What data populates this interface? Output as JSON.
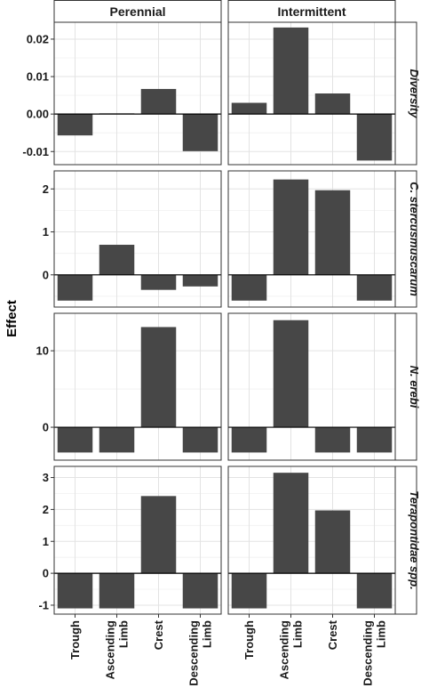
{
  "chart_data": {
    "type": "bar",
    "ylabel": "Effect",
    "categories": [
      "Trough",
      "Ascending Limb",
      "Crest",
      "Descending Limb"
    ],
    "category_lines": [
      [
        "Trough"
      ],
      [
        "Ascending",
        "Limb"
      ],
      [
        "Crest"
      ],
      [
        "Descending",
        "Limb"
      ]
    ],
    "columns": [
      "Perennial",
      "Intermittent"
    ],
    "rows": [
      {
        "name": "Diversity",
        "yticks": [
          -0.01,
          0.0,
          0.01,
          0.02
        ],
        "ytick_labels": [
          "-0.01",
          "0.00",
          "0.01",
          "0.02"
        ],
        "ylim": [
          -0.0135,
          0.0245
        ],
        "series": [
          {
            "name": "Perennial",
            "values": [
              -0.0057,
              0.0002,
              0.0067,
              -0.0099
            ]
          },
          {
            "name": "Intermittent",
            "values": [
              0.003,
              0.0231,
              0.0055,
              -0.0124
            ]
          }
        ]
      },
      {
        "name": "C. stercusmuscarum",
        "yticks": [
          0,
          1,
          2
        ],
        "ytick_labels": [
          "0",
          "1",
          "2"
        ],
        "ylim": [
          -0.75,
          2.42
        ],
        "series": [
          {
            "name": "Perennial",
            "values": [
              -0.6,
              0.7,
              -0.35,
              -0.27
            ]
          },
          {
            "name": "Intermittent",
            "values": [
              -0.6,
              2.22,
              1.97,
              -0.6
            ]
          }
        ]
      },
      {
        "name": "N. erebi",
        "yticks": [
          0,
          10
        ],
        "ytick_labels": [
          "0",
          "10"
        ],
        "ylim": [
          -4.3,
          14.9
        ],
        "series": [
          {
            "name": "Perennial",
            "values": [
              -3.3,
              -3.3,
              13.1,
              -3.3
            ]
          },
          {
            "name": "Intermittent",
            "values": [
              -3.3,
              14.0,
              -3.3,
              -3.3
            ]
          }
        ]
      },
      {
        "name": "Terapontidae spp.",
        "yticks": [
          -1,
          0,
          1,
          2,
          3
        ],
        "ytick_labels": [
          "-1",
          "0",
          "1",
          "2",
          "3"
        ],
        "ylim": [
          -1.28,
          3.35
        ],
        "series": [
          {
            "name": "Perennial",
            "values": [
              -1.1,
              -1.1,
              2.42,
              -1.1
            ]
          },
          {
            "name": "Intermittent",
            "values": [
              -1.1,
              3.15,
              1.97,
              -1.1
            ]
          }
        ]
      }
    ],
    "grid": true,
    "bar_color": "#474747"
  }
}
